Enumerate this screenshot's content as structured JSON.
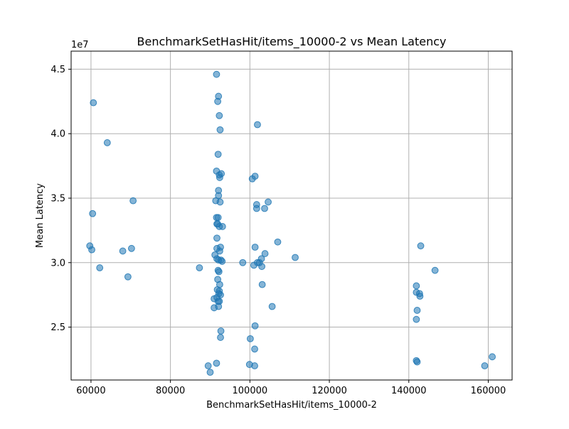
{
  "chart_data": {
    "type": "scatter",
    "title": "BenchmarkSetHasHit/items_10000-2 vs Mean Latency",
    "xlabel": "BenchmarkSetHasHit/items_10000-2",
    "ylabel": "Mean Latency",
    "y_offset_label": "1e7",
    "xlim": [
      55000,
      166000
    ],
    "ylim": [
      20900000,
      46400000
    ],
    "x_ticks": [
      60000,
      80000,
      100000,
      120000,
      140000,
      160000
    ],
    "x_tick_labels": [
      "60000",
      "80000",
      "100000",
      "120000",
      "140000",
      "160000"
    ],
    "y_ticks": [
      25000000,
      30000000,
      35000000,
      40000000,
      45000000
    ],
    "y_tick_labels": [
      "2.5",
      "3.0",
      "3.5",
      "4.0",
      "4.5"
    ],
    "grid": true,
    "marker_color": "#1f77b4",
    "marker_alpha": 0.55,
    "series": [
      {
        "points": [
          [
            60600,
            42400000
          ],
          [
            64100,
            39300000
          ],
          [
            70600,
            34800000
          ],
          [
            60400,
            33800000
          ],
          [
            59700,
            31300000
          ],
          [
            60200,
            31000000
          ],
          [
            62200,
            29600000
          ],
          [
            68000,
            30900000
          ],
          [
            70200,
            31100000
          ],
          [
            69300,
            28900000
          ],
          [
            91600,
            44600000
          ],
          [
            92100,
            42900000
          ],
          [
            91900,
            42500000
          ],
          [
            92300,
            41400000
          ],
          [
            92500,
            40300000
          ],
          [
            92000,
            38400000
          ],
          [
            91600,
            37100000
          ],
          [
            92800,
            36900000
          ],
          [
            92400,
            36600000
          ],
          [
            92300,
            36800000
          ],
          [
            92100,
            35600000
          ],
          [
            92100,
            35200000
          ],
          [
            91400,
            34800000
          ],
          [
            92500,
            34700000
          ],
          [
            91600,
            33500000
          ],
          [
            92000,
            33500000
          ],
          [
            91700,
            33000000
          ],
          [
            91900,
            33000000
          ],
          [
            92300,
            32800000
          ],
          [
            93100,
            32800000
          ],
          [
            91700,
            31900000
          ],
          [
            91700,
            31100000
          ],
          [
            92600,
            31200000
          ],
          [
            92400,
            30900000
          ],
          [
            91200,
            30600000
          ],
          [
            91700,
            30300000
          ],
          [
            92100,
            30200000
          ],
          [
            92700,
            30200000
          ],
          [
            93000,
            30100000
          ],
          [
            87300,
            29600000
          ],
          [
            92000,
            29400000
          ],
          [
            92200,
            29300000
          ],
          [
            91900,
            28700000
          ],
          [
            92400,
            28300000
          ],
          [
            91800,
            27900000
          ],
          [
            92300,
            27800000
          ],
          [
            92200,
            27600000
          ],
          [
            92600,
            27500000
          ],
          [
            91000,
            27200000
          ],
          [
            91700,
            27300000
          ],
          [
            92000,
            27000000
          ],
          [
            92300,
            27000000
          ],
          [
            91000,
            26500000
          ],
          [
            92100,
            26600000
          ],
          [
            92700,
            24700000
          ],
          [
            92600,
            24200000
          ],
          [
            89500,
            22000000
          ],
          [
            91600,
            22200000
          ],
          [
            90000,
            21500000
          ],
          [
            101900,
            40700000
          ],
          [
            100600,
            36500000
          ],
          [
            101300,
            36700000
          ],
          [
            101700,
            34500000
          ],
          [
            104600,
            34700000
          ],
          [
            101700,
            34200000
          ],
          [
            103700,
            34200000
          ],
          [
            101300,
            31200000
          ],
          [
            107000,
            31600000
          ],
          [
            103800,
            30700000
          ],
          [
            102900,
            30300000
          ],
          [
            98200,
            30000000
          ],
          [
            101900,
            30000000
          ],
          [
            102400,
            30000000
          ],
          [
            101000,
            29800000
          ],
          [
            103000,
            29700000
          ],
          [
            111400,
            30400000
          ],
          [
            103100,
            28300000
          ],
          [
            105600,
            26600000
          ],
          [
            101300,
            25100000
          ],
          [
            100100,
            24100000
          ],
          [
            101200,
            23300000
          ],
          [
            99900,
            22100000
          ],
          [
            101200,
            22000000
          ],
          [
            143000,
            31300000
          ],
          [
            146600,
            29400000
          ],
          [
            141900,
            28200000
          ],
          [
            141900,
            27700000
          ],
          [
            142700,
            27600000
          ],
          [
            142800,
            27400000
          ],
          [
            142100,
            26300000
          ],
          [
            141900,
            25600000
          ],
          [
            141900,
            22400000
          ],
          [
            142100,
            22300000
          ],
          [
            161000,
            22700000
          ],
          [
            159100,
            22000000
          ]
        ]
      }
    ]
  }
}
